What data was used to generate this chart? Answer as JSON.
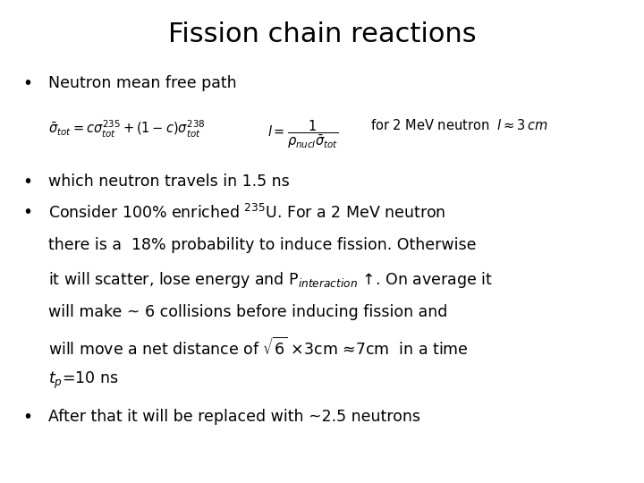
{
  "title": "Fission chain reactions",
  "title_fontsize": 22,
  "background_color": "#ffffff",
  "text_color": "#000000",
  "bullet1": "Neutron mean free path",
  "formula1a": "$\\bar{\\sigma}_{tot} = c\\sigma^{235}_{tot} + (1-c)\\sigma^{238}_{tot}$",
  "formula1b": "$l = \\dfrac{1}{\\rho_{nucl}\\bar{\\sigma}_{tot}}$",
  "formula1c": "for 2 MeV neutron  $l \\approx 3\\,cm$",
  "bullet2": "which neutron travels in 1.5 ns",
  "bullet3a": "Consider 100% enriched $^{235}$U. For a 2 MeV neutron",
  "bullet3b": "there is a  18% probability to induce fission. Otherwise",
  "bullet3c": "it will scatter, lose energy and P$_{interaction}$ ↑. On average it",
  "bullet3d": "will make ~ 6 collisions before inducing fission and",
  "bullet3e": "will move a net distance of $\\sqrt{6}$ ×3cm ≈7cm  in a time",
  "bullet3f": "$t_p$=10 ns",
  "bullet4": "After that it will be replaced with ~2.5 neutrons",
  "body_fontsize": 12.5,
  "formula_fontsize": 10.5,
  "formula1c_fontsize": 10.5
}
